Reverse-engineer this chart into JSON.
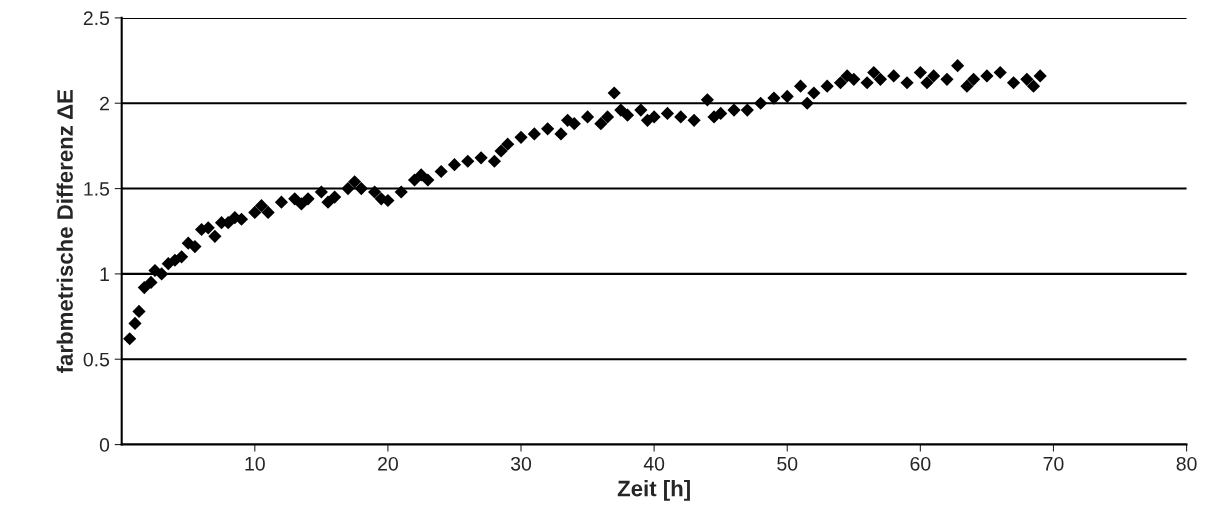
{
  "chart_data": {
    "type": "scatter",
    "xlabel": "Zeit [h]",
    "ylabel": "farbmetrische Differenz ΔE",
    "xlim": [
      0,
      80
    ],
    "xticks": [
      10,
      20,
      30,
      40,
      50,
      60,
      70,
      80
    ],
    "ylim": [
      0,
      2.5
    ],
    "yticks": [
      0,
      0.5,
      1,
      1.5,
      2,
      2.5
    ],
    "grid": "y",
    "marker": "diamond",
    "legend": false,
    "series": [
      {
        "color": "#000000",
        "x": [
          0.6,
          1.0,
          1.3,
          1.7,
          2.2,
          2.5,
          3,
          3.5,
          4,
          4.5,
          5,
          5.5,
          6,
          6.5,
          7,
          7.5,
          8,
          8.5,
          9,
          10,
          10.5,
          11,
          12,
          13,
          13.5,
          14,
          15,
          15.5,
          16,
          17,
          17.5,
          18,
          19,
          19.5,
          20,
          21,
          22,
          22.5,
          23,
          24,
          25,
          26,
          27,
          28,
          28.5,
          29,
          30,
          31,
          32,
          33,
          33.5,
          34,
          35,
          36,
          36.5,
          37,
          37.5,
          38,
          39,
          39.5,
          40,
          41,
          42,
          43,
          44,
          44.5,
          45,
          46,
          47,
          48,
          49,
          50,
          51,
          51.5,
          52,
          53,
          54,
          54.5,
          55,
          56,
          56.5,
          57,
          58,
          59,
          60,
          60.5,
          61,
          62,
          62.8,
          63.5,
          64,
          65,
          66,
          67,
          68,
          68.5,
          69
        ],
        "values": [
          0.62,
          0.71,
          0.78,
          0.92,
          0.95,
          1.02,
          1.0,
          1.06,
          1.08,
          1.1,
          1.18,
          1.16,
          1.26,
          1.27,
          1.22,
          1.3,
          1.3,
          1.33,
          1.32,
          1.36,
          1.4,
          1.36,
          1.42,
          1.44,
          1.41,
          1.44,
          1.48,
          1.42,
          1.45,
          1.5,
          1.54,
          1.5,
          1.48,
          1.44,
          1.43,
          1.48,
          1.55,
          1.58,
          1.55,
          1.6,
          1.64,
          1.66,
          1.68,
          1.66,
          1.72,
          1.76,
          1.8,
          1.82,
          1.85,
          1.82,
          1.9,
          1.88,
          1.92,
          1.88,
          1.92,
          2.06,
          1.96,
          1.93,
          1.96,
          1.9,
          1.92,
          1.94,
          1.92,
          1.9,
          2.02,
          1.92,
          1.94,
          1.96,
          1.96,
          2.0,
          2.03,
          2.04,
          2.1,
          2.0,
          2.06,
          2.1,
          2.12,
          2.16,
          2.14,
          2.12,
          2.18,
          2.14,
          2.16,
          2.12,
          2.18,
          2.12,
          2.16,
          2.14,
          2.22,
          2.1,
          2.14,
          2.16,
          2.18,
          2.12,
          2.14,
          2.1,
          2.16
        ]
      }
    ]
  }
}
